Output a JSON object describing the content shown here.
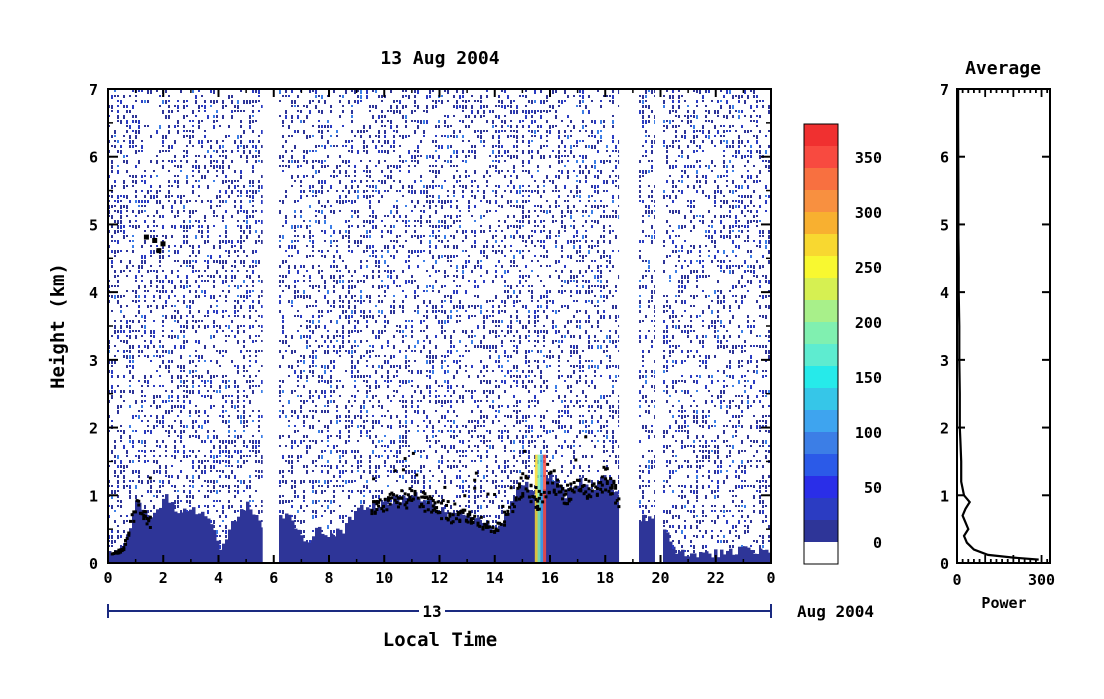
{
  "title": "13 Aug 2004",
  "chart_data": [
    {
      "type": "heatmap",
      "title": "13 Aug 2004",
      "xlabel": "Local Time",
      "ylabel": "Height (km)",
      "x_ticks": [
        "0",
        "2",
        "4",
        "6",
        "8",
        "10",
        "12",
        "14",
        "16",
        "18",
        "20",
        "22",
        "0"
      ],
      "y_ticks": [
        "0",
        "1",
        "2",
        "3",
        "4",
        "5",
        "6",
        "7"
      ],
      "xlim": [
        0,
        24
      ],
      "ylim": [
        0,
        7
      ],
      "date_bar": {
        "day": "13",
        "month_year": "Aug 2004"
      },
      "data_gaps_hours": [
        [
          5.6,
          6.1
        ],
        [
          18.5,
          19.2
        ],
        [
          19.8,
          20.0
        ]
      ],
      "black_contour_regions_hours": [
        [
          0.1,
          1.5
        ],
        [
          9.5,
          18.6
        ]
      ],
      "colorbar": {
        "ticks": [
          "0",
          "50",
          "100",
          "150",
          "200",
          "250",
          "300",
          "350"
        ],
        "range": [
          0,
          380
        ],
        "colors": [
          "#ffffff",
          "#2e3598",
          "#2b3cc2",
          "#2a2ee8",
          "#2b5ae8",
          "#3c7ee6",
          "#3ea4ef",
          "#36c6e8",
          "#26eaea",
          "#5eecd0",
          "#80f0b0",
          "#a8f08a",
          "#d6f052",
          "#f8f830",
          "#f8d830",
          "#f8b030",
          "#f89040",
          "#f87040",
          "#f84a40",
          "#f03030"
        ],
        "levels": [
          -20,
          0,
          20,
          40,
          60,
          80,
          100,
          120,
          140,
          160,
          180,
          200,
          220,
          240,
          260,
          280,
          300,
          320,
          340,
          360,
          380
        ]
      },
      "boundary_layer_profile": {
        "x": [
          0,
          0.5,
          1,
          1.5,
          2,
          2.5,
          3,
          3.5,
          4,
          4.5,
          5,
          5.5,
          6,
          6.5,
          7,
          7.5,
          8,
          8.5,
          9,
          9.5,
          10,
          10.5,
          11,
          11.5,
          12,
          12.5,
          13,
          13.5,
          14,
          14.5,
          15,
          15.5,
          16,
          16.5,
          17,
          17.5,
          18,
          18.5,
          19,
          19.5,
          20,
          20.5,
          21,
          21.5,
          22,
          22.5,
          23,
          23.5,
          24
        ],
        "y": [
          0.15,
          0.2,
          0.9,
          0.6,
          1.0,
          0.7,
          0.8,
          0.75,
          0.2,
          0.6,
          0.9,
          0.5,
          0.6,
          0.7,
          0.3,
          0.5,
          0.4,
          0.5,
          0.85,
          0.8,
          0.9,
          0.95,
          1.0,
          0.9,
          0.8,
          0.7,
          0.7,
          0.6,
          0.5,
          0.8,
          1.2,
          0.9,
          1.3,
          1.0,
          1.2,
          1.1,
          1.3,
          0.9,
          0.6,
          0.7,
          0.6,
          0.2,
          0.15,
          0.15,
          0.15,
          0.15,
          0.2,
          0.2,
          0.2
        ]
      }
    },
    {
      "type": "line",
      "title": "Average",
      "xlabel": "Power",
      "ylabel": "",
      "x_ticks": [
        "0",
        "300"
      ],
      "y_ticks": [
        "0",
        "1",
        "2",
        "3",
        "4",
        "5",
        "6",
        "7"
      ],
      "xlim": [
        0,
        330
      ],
      "ylim": [
        0,
        7
      ],
      "series": [
        {
          "x": [
            290,
            200,
            110,
            60,
            35,
            25,
            40,
            30,
            20,
            30,
            45,
            25,
            15,
            15,
            12,
            10,
            10,
            8,
            8,
            6,
            6,
            5,
            5,
            4,
            4
          ],
          "y": [
            0.05,
            0.08,
            0.12,
            0.2,
            0.3,
            0.4,
            0.5,
            0.6,
            0.7,
            0.8,
            0.9,
            1.0,
            1.2,
            1.5,
            1.8,
            2.0,
            2.5,
            3.0,
            3.5,
            4.0,
            4.5,
            4.8,
            5.5,
            6.5,
            7.0
          ]
        }
      ]
    }
  ]
}
